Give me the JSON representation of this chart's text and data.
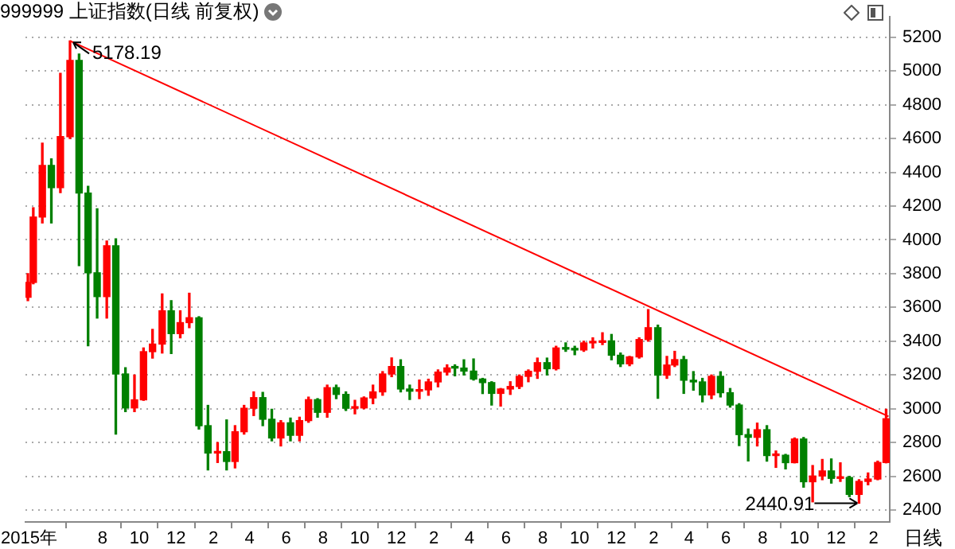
{
  "chart_data": {
    "type": "candlestick",
    "title": "999999 上证指数(日线 前复权)",
    "xlim": [
      "2015-03-26",
      "2019-02-28"
    ],
    "xticks": [
      {
        "value": "2015-04-01",
        "label": "2015年"
      },
      {
        "value": "2015-08-01",
        "label": "8"
      },
      {
        "value": "2015-10-01",
        "label": "10"
      },
      {
        "value": "2015-12-01",
        "label": "12"
      },
      {
        "value": "2016-02-01",
        "label": "2"
      },
      {
        "value": "2016-04-01",
        "label": "4"
      },
      {
        "value": "2016-06-01",
        "label": "6"
      },
      {
        "value": "2016-08-01",
        "label": "8"
      },
      {
        "value": "2016-10-01",
        "label": "10"
      },
      {
        "value": "2016-12-01",
        "label": "12"
      },
      {
        "value": "2017-02-01",
        "label": "2"
      },
      {
        "value": "2017-04-01",
        "label": "4"
      },
      {
        "value": "2017-06-01",
        "label": "6"
      },
      {
        "value": "2017-08-01",
        "label": "8"
      },
      {
        "value": "2017-10-01",
        "label": "10"
      },
      {
        "value": "2017-12-01",
        "label": "12"
      },
      {
        "value": "2018-02-01",
        "label": "2"
      },
      {
        "value": "2018-04-01",
        "label": "4"
      },
      {
        "value": "2018-06-01",
        "label": "6"
      },
      {
        "value": "2018-08-01",
        "label": "8"
      },
      {
        "value": "2018-10-01",
        "label": "10"
      },
      {
        "value": "2018-12-01",
        "label": "12"
      },
      {
        "value": "2019-02-01",
        "label": "2"
      }
    ],
    "ylim": [
      2330,
      5320
    ],
    "yticks": [
      2400,
      2600,
      2800,
      3000,
      3200,
      3400,
      3600,
      3800,
      4000,
      4200,
      4400,
      4600,
      4800,
      5000,
      5200
    ],
    "grid": "y",
    "annotations": [
      {
        "text": "5178.19",
        "x": "2015-06-08",
        "y": 5178.19
      },
      {
        "text": "2440.91",
        "x": "2019-01-08",
        "y": 2440.91
      },
      "日线"
    ],
    "series": [
      {
        "type": "candlestick",
        "x": [
          "2015-03-30",
          "2015-04-08",
          "2015-04-23",
          "2015-05-08",
          "2015-05-23",
          "2015-06-08",
          "2015-06-23",
          "2015-07-08",
          "2015-07-23",
          "2015-08-08",
          "2015-08-23",
          "2015-09-08",
          "2015-09-23",
          "2015-10-08",
          "2015-10-23",
          "2015-11-08",
          "2015-11-23",
          "2015-12-08",
          "2015-12-23",
          "2016-01-08",
          "2016-01-23",
          "2016-02-08",
          "2016-02-23",
          "2016-03-08",
          "2016-03-23",
          "2016-04-08",
          "2016-04-23",
          "2016-05-08",
          "2016-05-23",
          "2016-06-08",
          "2016-06-23",
          "2016-07-08",
          "2016-07-23",
          "2016-08-08",
          "2016-08-23",
          "2016-09-08",
          "2016-09-23",
          "2016-10-08",
          "2016-10-23",
          "2016-11-08",
          "2016-11-23",
          "2016-12-08",
          "2016-12-23",
          "2017-01-08",
          "2017-01-23",
          "2017-02-08",
          "2017-02-23",
          "2017-03-08",
          "2017-03-23",
          "2017-04-08",
          "2017-04-23",
          "2017-05-08",
          "2017-05-23",
          "2017-06-08",
          "2017-06-23",
          "2017-07-08",
          "2017-07-23",
          "2017-08-08",
          "2017-08-23",
          "2017-09-08",
          "2017-09-23",
          "2017-10-08",
          "2017-10-23",
          "2017-11-08",
          "2017-11-23",
          "2017-12-08",
          "2017-12-23",
          "2018-01-08",
          "2018-01-23",
          "2018-02-08",
          "2018-02-23",
          "2018-03-08",
          "2018-03-23",
          "2018-04-08",
          "2018-04-23",
          "2018-05-08",
          "2018-05-23",
          "2018-06-08",
          "2018-06-23",
          "2018-07-08",
          "2018-07-23",
          "2018-08-08",
          "2018-08-23",
          "2018-09-08",
          "2018-09-23",
          "2018-10-08",
          "2018-10-23",
          "2018-11-08",
          "2018-11-23",
          "2018-12-08",
          "2018-12-23",
          "2019-01-08",
          "2019-01-23",
          "2019-02-08",
          "2019-02-22"
        ],
        "ohlc": [
          [
            3660,
            3800,
            3640,
            3748
          ],
          [
            3748,
            4190,
            3740,
            4135
          ],
          [
            4135,
            4572,
            4100,
            4441
          ],
          [
            4441,
            4480,
            4100,
            4309
          ],
          [
            4309,
            4986,
            4280,
            4611
          ],
          [
            4611,
            5178.19,
            4600,
            5062
          ],
          [
            5062,
            5100,
            3847,
            4277
          ],
          [
            4277,
            4317,
            3373,
            3805
          ],
          [
            3805,
            4184,
            3537,
            3664
          ],
          [
            3664,
            3993,
            3537,
            3965
          ],
          [
            3965,
            4006,
            2850,
            3206
          ],
          [
            3206,
            3243,
            2983,
            3005
          ],
          [
            3005,
            3200,
            2983,
            3053
          ],
          [
            3053,
            3360,
            3050,
            3338
          ],
          [
            3338,
            3470,
            3300,
            3383
          ],
          [
            3383,
            3680,
            3330,
            3580
          ],
          [
            3580,
            3640,
            3327,
            3445
          ],
          [
            3445,
            3580,
            3420,
            3510
          ],
          [
            3510,
            3684,
            3480,
            3539
          ],
          [
            3539,
            3545,
            2880,
            2900
          ],
          [
            2900,
            3020,
            2638,
            2738
          ],
          [
            2738,
            2800,
            2682,
            2746
          ],
          [
            2746,
            2934,
            2638,
            2688
          ],
          [
            2688,
            2900,
            2650,
            2864
          ],
          [
            2864,
            3020,
            2850,
            3003
          ],
          [
            3003,
            3100,
            2960,
            3066
          ],
          [
            3066,
            3097,
            2900,
            2938
          ],
          [
            2938,
            2997,
            2810,
            2827
          ],
          [
            2827,
            2930,
            2780,
            2917
          ],
          [
            2917,
            2945,
            2810,
            2843
          ],
          [
            2843,
            2950,
            2810,
            2930
          ],
          [
            2930,
            3069,
            2920,
            3054
          ],
          [
            3054,
            3060,
            2950,
            2979
          ],
          [
            2979,
            3140,
            2950,
            3125
          ],
          [
            3125,
            3140,
            3060,
            3085
          ],
          [
            3085,
            3100,
            2990,
            3003
          ],
          [
            3003,
            3050,
            2970,
            3005
          ],
          [
            3005,
            3070,
            3000,
            3064
          ],
          [
            3064,
            3140,
            3030,
            3100
          ],
          [
            3100,
            3220,
            3080,
            3206
          ],
          [
            3206,
            3301,
            3190,
            3250
          ],
          [
            3250,
            3290,
            3100,
            3117
          ],
          [
            3117,
            3140,
            3055,
            3104
          ],
          [
            3104,
            3170,
            3060,
            3112
          ],
          [
            3112,
            3175,
            3080,
            3159
          ],
          [
            3159,
            3230,
            3130,
            3217
          ],
          [
            3217,
            3260,
            3200,
            3242
          ],
          [
            3242,
            3260,
            3195,
            3241
          ],
          [
            3241,
            3290,
            3200,
            3223
          ],
          [
            3223,
            3295,
            3170,
            3176
          ],
          [
            3176,
            3180,
            3090,
            3155
          ],
          [
            3155,
            3160,
            3022,
            3091
          ],
          [
            3091,
            3120,
            3016,
            3117
          ],
          [
            3117,
            3160,
            3085,
            3132
          ],
          [
            3132,
            3200,
            3120,
            3192
          ],
          [
            3192,
            3230,
            3160,
            3222
          ],
          [
            3222,
            3300,
            3180,
            3273
          ],
          [
            3273,
            3300,
            3200,
            3237
          ],
          [
            3237,
            3370,
            3230,
            3360
          ],
          [
            3360,
            3390,
            3340,
            3353
          ],
          [
            3353,
            3370,
            3320,
            3348
          ],
          [
            3348,
            3400,
            3340,
            3390
          ],
          [
            3390,
            3420,
            3360,
            3393
          ],
          [
            3393,
            3450,
            3380,
            3402
          ],
          [
            3402,
            3440,
            3290,
            3317
          ],
          [
            3317,
            3330,
            3250,
            3266
          ],
          [
            3266,
            3310,
            3255,
            3307
          ],
          [
            3307,
            3420,
            3300,
            3410
          ],
          [
            3410,
            3587,
            3400,
            3480
          ],
          [
            3480,
            3495,
            3062,
            3199
          ],
          [
            3199,
            3310,
            3180,
            3259
          ],
          [
            3259,
            3340,
            3250,
            3291
          ],
          [
            3291,
            3310,
            3091,
            3169
          ],
          [
            3169,
            3220,
            3110,
            3159
          ],
          [
            3159,
            3180,
            3041,
            3082
          ],
          [
            3082,
            3200,
            3060,
            3192
          ],
          [
            3192,
            3219,
            3070,
            3095
          ],
          [
            3095,
            3120,
            3010,
            3022
          ],
          [
            3022,
            3030,
            2782,
            2847
          ],
          [
            2847,
            2880,
            2691,
            2831
          ],
          [
            2831,
            2915,
            2780,
            2876
          ],
          [
            2876,
            2900,
            2690,
            2723
          ],
          [
            2723,
            2750,
            2653,
            2725
          ],
          [
            2725,
            2730,
            2644,
            2681
          ],
          [
            2681,
            2827,
            2680,
            2821
          ],
          [
            2821,
            2830,
            2536,
            2568
          ],
          [
            2568,
            2664,
            2449,
            2602
          ],
          [
            2602,
            2700,
            2580,
            2632
          ],
          [
            2632,
            2703,
            2560,
            2588
          ],
          [
            2588,
            2680,
            2570,
            2593
          ],
          [
            2593,
            2600,
            2480,
            2493
          ],
          [
            2493,
            2580,
            2440.91,
            2570
          ],
          [
            2570,
            2620,
            2550,
            2584
          ],
          [
            2584,
            2690,
            2580,
            2682
          ],
          [
            2682,
            2997,
            2680,
            2941
          ]
        ],
        "colors": [
          "#ff0000",
          "#ff0000",
          "#ff0000",
          "#008000",
          "#ff0000",
          "#ff0000",
          "#008000",
          "#008000",
          "#008000",
          "#ff0000",
          "#008000",
          "#008000",
          "#ff0000",
          "#ff0000",
          "#ff0000",
          "#ff0000",
          "#008000",
          "#ff0000",
          "#ff0000",
          "#008000",
          "#008000",
          "#ff0000",
          "#008000",
          "#ff0000",
          "#ff0000",
          "#ff0000",
          "#008000",
          "#008000",
          "#ff0000",
          "#008000",
          "#ff0000",
          "#ff0000",
          "#008000",
          "#ff0000",
          "#008000",
          "#008000",
          "#ff0000",
          "#ff0000",
          "#ff0000",
          "#ff0000",
          "#ff0000",
          "#008000",
          "#008000",
          "#ff0000",
          "#ff0000",
          "#ff0000",
          "#ff0000",
          "#008000",
          "#008000",
          "#008000",
          "#008000",
          "#008000",
          "#ff0000",
          "#ff0000",
          "#ff0000",
          "#ff0000",
          "#ff0000",
          "#008000",
          "#ff0000",
          "#008000",
          "#008000",
          "#ff0000",
          "#ff0000",
          "#ff0000",
          "#008000",
          "#008000",
          "#ff0000",
          "#ff0000",
          "#ff0000",
          "#008000",
          "#ff0000",
          "#ff0000",
          "#008000",
          "#008000",
          "#008000",
          "#ff0000",
          "#008000",
          "#008000",
          "#008000",
          "#008000",
          "#ff0000",
          "#008000",
          "#ff0000",
          "#008000",
          "#ff0000",
          "#008000",
          "#ff0000",
          "#ff0000",
          "#008000",
          "#ff0000",
          "#008000",
          "#ff0000",
          "#ff0000",
          "#ff0000",
          "#ff0000"
        ]
      },
      {
        "type": "line",
        "x": [
          "2015-06-08",
          "2019-02-26"
        ],
        "values": [
          5178.19,
          2955
        ],
        "color": "#ff0000"
      }
    ]
  }
}
